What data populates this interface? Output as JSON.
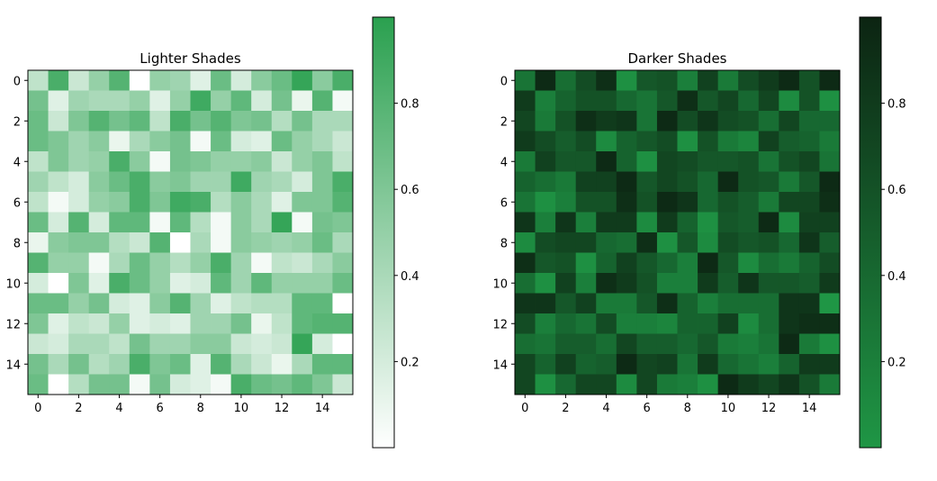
{
  "chart_data": [
    {
      "type": "heatmap",
      "title": "Lighter Shades",
      "xticks": [
        "0",
        "2",
        "4",
        "6",
        "8",
        "10",
        "12",
        "14"
      ],
      "yticks": [
        "0",
        "2",
        "4",
        "6",
        "8",
        "10",
        "12",
        "14"
      ],
      "colormap": [
        "#ffffff",
        "#2aa04f"
      ],
      "colorbar_ticks": [
        {
          "value": 0.2,
          "label": "0.2"
        },
        {
          "value": 0.4,
          "label": "0.4"
        },
        {
          "value": 0.6,
          "label": "0.6"
        },
        {
          "value": 0.8,
          "label": "0.8"
        }
      ],
      "values": [
        [
          0.3,
          0.85,
          0.25,
          0.5,
          0.8,
          0.0,
          0.5,
          0.45,
          0.15,
          0.7,
          0.2,
          0.55,
          0.7,
          0.95,
          0.55,
          0.85
        ],
        [
          0.65,
          0.15,
          0.45,
          0.4,
          0.4,
          0.5,
          0.15,
          0.5,
          0.9,
          0.5,
          0.75,
          0.2,
          0.65,
          0.1,
          0.8,
          0.05
        ],
        [
          0.7,
          0.25,
          0.6,
          0.8,
          0.65,
          0.75,
          0.3,
          0.85,
          0.65,
          0.8,
          0.6,
          0.65,
          0.35,
          0.65,
          0.4,
          0.4
        ],
        [
          0.7,
          0.6,
          0.45,
          0.55,
          0.1,
          0.4,
          0.55,
          0.65,
          0.05,
          0.7,
          0.2,
          0.15,
          0.7,
          0.5,
          0.4,
          0.25
        ],
        [
          0.3,
          0.6,
          0.45,
          0.5,
          0.85,
          0.55,
          0.05,
          0.65,
          0.6,
          0.5,
          0.5,
          0.55,
          0.25,
          0.5,
          0.6,
          0.3
        ],
        [
          0.45,
          0.3,
          0.2,
          0.55,
          0.7,
          0.85,
          0.55,
          0.6,
          0.45,
          0.45,
          0.9,
          0.45,
          0.4,
          0.2,
          0.6,
          0.85
        ],
        [
          0.3,
          0.05,
          0.2,
          0.5,
          0.55,
          0.85,
          0.6,
          0.9,
          0.85,
          0.35,
          0.55,
          0.4,
          0.15,
          0.6,
          0.6,
          0.8
        ],
        [
          0.7,
          0.2,
          0.8,
          0.2,
          0.75,
          0.75,
          0.05,
          0.75,
          0.35,
          0.05,
          0.55,
          0.4,
          0.95,
          0.05,
          0.65,
          0.6
        ],
        [
          0.1,
          0.55,
          0.6,
          0.6,
          0.35,
          0.25,
          0.8,
          0.0,
          0.4,
          0.05,
          0.55,
          0.5,
          0.45,
          0.5,
          0.7,
          0.4
        ],
        [
          0.8,
          0.5,
          0.5,
          0.05,
          0.4,
          0.7,
          0.5,
          0.35,
          0.5,
          0.85,
          0.45,
          0.05,
          0.3,
          0.25,
          0.4,
          0.55
        ],
        [
          0.2,
          0.0,
          0.6,
          0.15,
          0.85,
          0.7,
          0.5,
          0.15,
          0.2,
          0.75,
          0.45,
          0.75,
          0.5,
          0.5,
          0.5,
          0.7
        ],
        [
          0.7,
          0.7,
          0.5,
          0.65,
          0.2,
          0.15,
          0.55,
          0.8,
          0.45,
          0.15,
          0.3,
          0.35,
          0.35,
          0.75,
          0.75,
          0.0
        ],
        [
          0.6,
          0.15,
          0.3,
          0.25,
          0.5,
          0.15,
          0.2,
          0.15,
          0.45,
          0.45,
          0.65,
          0.1,
          0.3,
          0.75,
          0.8,
          0.8
        ],
        [
          0.25,
          0.2,
          0.4,
          0.4,
          0.3,
          0.65,
          0.45,
          0.45,
          0.55,
          0.55,
          0.25,
          0.2,
          0.25,
          0.95,
          0.2,
          0.0
        ],
        [
          0.65,
          0.4,
          0.65,
          0.35,
          0.45,
          0.85,
          0.6,
          0.7,
          0.15,
          0.8,
          0.4,
          0.25,
          0.1,
          0.4,
          0.75,
          0.75
        ],
        [
          0.7,
          0.0,
          0.35,
          0.65,
          0.65,
          0.05,
          0.65,
          0.2,
          0.15,
          0.05,
          0.85,
          0.7,
          0.65,
          0.75,
          0.6,
          0.25
        ]
      ]
    },
    {
      "type": "heatmap",
      "title": "Darker Shades",
      "xticks": [
        "0",
        "2",
        "4",
        "6",
        "8",
        "10",
        "12",
        "14"
      ],
      "yticks": [
        "0",
        "2",
        "4",
        "6",
        "8",
        "10",
        "12",
        "14"
      ],
      "colormap": [
        "#1f9645",
        "#0c2412"
      ],
      "colorbar_ticks": [
        {
          "value": 0.2,
          "label": "0.2"
        },
        {
          "value": 0.4,
          "label": "0.4"
        },
        {
          "value": 0.6,
          "label": "0.6"
        },
        {
          "value": 0.8,
          "label": "0.8"
        }
      ],
      "values": [
        [
          0.3,
          0.95,
          0.35,
          0.65,
          0.9,
          0.05,
          0.55,
          0.6,
          0.2,
          0.75,
          0.25,
          0.65,
          0.8,
          0.95,
          0.6,
          0.95
        ],
        [
          0.8,
          0.2,
          0.45,
          0.6,
          0.6,
          0.4,
          0.3,
          0.55,
          0.9,
          0.55,
          0.7,
          0.4,
          0.7,
          0.1,
          0.6,
          0.05
        ],
        [
          0.7,
          0.25,
          0.6,
          0.9,
          0.8,
          0.85,
          0.3,
          0.95,
          0.65,
          0.85,
          0.65,
          0.6,
          0.35,
          0.7,
          0.4,
          0.4
        ],
        [
          0.8,
          0.65,
          0.5,
          0.65,
          0.1,
          0.45,
          0.55,
          0.65,
          0.05,
          0.6,
          0.25,
          0.15,
          0.75,
          0.5,
          0.45,
          0.25
        ],
        [
          0.25,
          0.75,
          0.55,
          0.55,
          0.95,
          0.45,
          0.05,
          0.7,
          0.65,
          0.55,
          0.55,
          0.6,
          0.3,
          0.6,
          0.7,
          0.3
        ],
        [
          0.45,
          0.35,
          0.25,
          0.75,
          0.75,
          0.95,
          0.55,
          0.7,
          0.6,
          0.4,
          0.95,
          0.6,
          0.55,
          0.25,
          0.55,
          0.95
        ],
        [
          0.3,
          0.05,
          0.2,
          0.6,
          0.6,
          0.9,
          0.6,
          0.95,
          0.85,
          0.4,
          0.6,
          0.5,
          0.25,
          0.7,
          0.7,
          0.9
        ],
        [
          0.85,
          0.2,
          0.85,
          0.2,
          0.8,
          0.8,
          0.1,
          0.8,
          0.45,
          0.05,
          0.55,
          0.5,
          0.95,
          0.1,
          0.75,
          0.75
        ],
        [
          0.1,
          0.65,
          0.7,
          0.7,
          0.4,
          0.35,
          0.9,
          0.05,
          0.55,
          0.1,
          0.65,
          0.55,
          0.6,
          0.4,
          0.85,
          0.5
        ],
        [
          0.9,
          0.55,
          0.6,
          0.05,
          0.45,
          0.75,
          0.55,
          0.4,
          0.2,
          0.95,
          0.55,
          0.1,
          0.35,
          0.25,
          0.45,
          0.65
        ],
        [
          0.35,
          0.05,
          0.75,
          0.2,
          0.9,
          0.8,
          0.6,
          0.2,
          0.2,
          0.8,
          0.5,
          0.85,
          0.55,
          0.55,
          0.5,
          0.8
        ],
        [
          0.85,
          0.85,
          0.55,
          0.75,
          0.25,
          0.25,
          0.55,
          0.9,
          0.45,
          0.2,
          0.35,
          0.35,
          0.35,
          0.85,
          0.85,
          0.0
        ],
        [
          0.65,
          0.2,
          0.4,
          0.3,
          0.65,
          0.2,
          0.2,
          0.15,
          0.45,
          0.45,
          0.75,
          0.1,
          0.35,
          0.85,
          0.9,
          0.9
        ],
        [
          0.35,
          0.3,
          0.5,
          0.5,
          0.35,
          0.7,
          0.5,
          0.5,
          0.4,
          0.55,
          0.25,
          0.2,
          0.3,
          0.95,
          0.25,
          0.05
        ],
        [
          0.7,
          0.45,
          0.75,
          0.45,
          0.5,
          0.95,
          0.7,
          0.75,
          0.3,
          0.8,
          0.4,
          0.3,
          0.2,
          0.45,
          0.8,
          0.8
        ],
        [
          0.7,
          0.05,
          0.4,
          0.7,
          0.7,
          0.1,
          0.7,
          0.25,
          0.2,
          0.05,
          0.95,
          0.8,
          0.7,
          0.85,
          0.6,
          0.25
        ]
      ]
    }
  ]
}
